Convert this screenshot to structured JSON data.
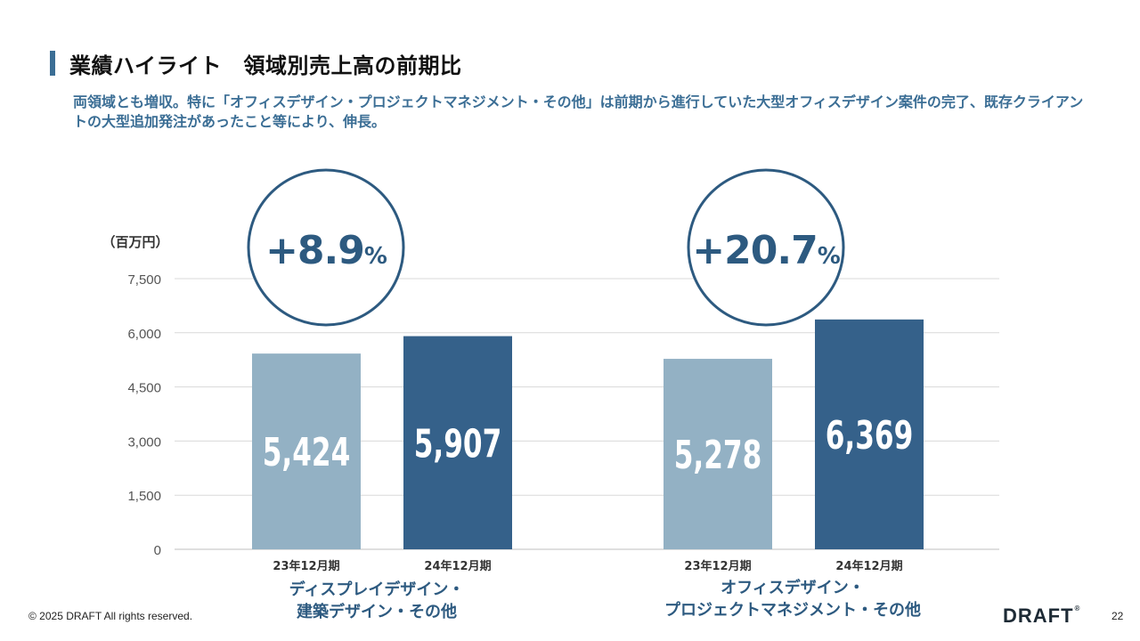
{
  "header": {
    "title": "業績ハイライト　領域別売上高の前期比",
    "subtitle": "両領域とも増収。特に「オフィスデザイン・プロジェクトマネジメント・その他」は前期から進行していた大型オフィスデザイン案件の完了、既存クライアントの大型追加発注があったこと等により、伸長。"
  },
  "chart_data": {
    "type": "bar",
    "unit_label": "（百万円）",
    "ylim": [
      0,
      7500
    ],
    "yticks": [
      "0",
      "1,500",
      "3,000",
      "4,500",
      "6,000",
      "7,500"
    ],
    "ytick_values": [
      0,
      1500,
      3000,
      4500,
      6000,
      7500
    ],
    "grid": true,
    "groups": [
      {
        "name_lines": [
          "ディスプレイデザイン・",
          "建築デザイン・その他"
        ],
        "growth": "+8.9",
        "growth_unit": "%",
        "bars": [
          {
            "period": "23年12月期",
            "value": 5424,
            "label": "5,424",
            "color": "#93b1c4"
          },
          {
            "period": "24年12月期",
            "value": 5907,
            "label": "5,907",
            "color": "#35618a"
          }
        ]
      },
      {
        "name_lines": [
          "オフィスデザイン・",
          "プロジェクトマネジメント・その他"
        ],
        "growth": "+20.7",
        "growth_unit": "%",
        "bars": [
          {
            "period": "23年12月期",
            "value": 5278,
            "label": "5,278",
            "color": "#93b1c4"
          },
          {
            "period": "24年12月期",
            "value": 6369,
            "label": "6,369",
            "color": "#35618a"
          }
        ]
      }
    ],
    "colors": {
      "accent": "#3b6e95",
      "text_blue": "#2d5a80",
      "grid": "#d9d9d9",
      "axis": "#bfbfbf",
      "tick": "#555555"
    }
  },
  "footer": {
    "copyright": "© 2025 DRAFT All rights reserved.",
    "logo": "DRAFT",
    "logo_mark": "®",
    "page": "22"
  }
}
